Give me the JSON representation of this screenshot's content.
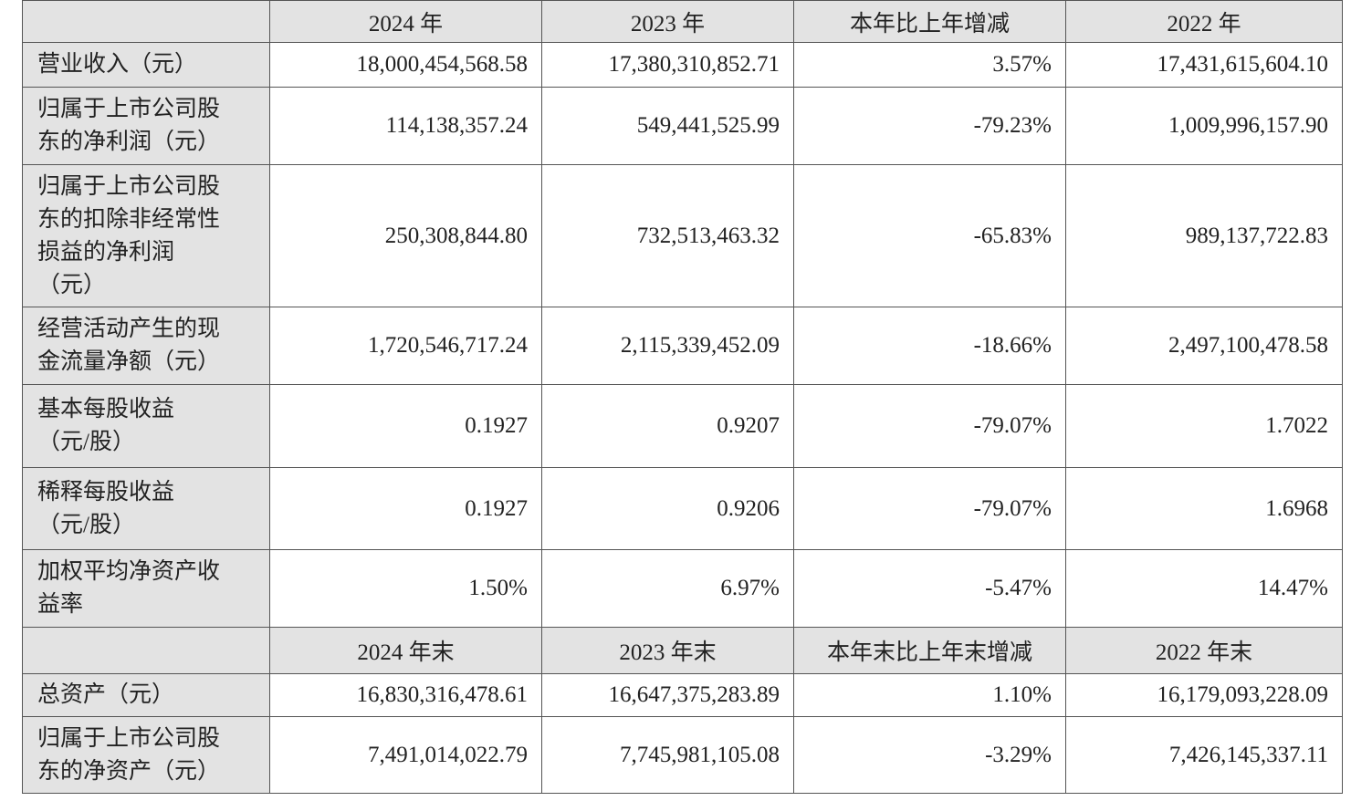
{
  "sections": [
    {
      "columns": [
        "2024 年",
        "2023 年",
        "本年比上年增减",
        "2022 年"
      ],
      "rows": [
        {
          "label": [
            "营业收入（元）"
          ],
          "values": [
            "18,000,454,568.58",
            "17,380,310,852.71",
            "3.57%",
            "17,431,615,604.10"
          ]
        },
        {
          "label": [
            "归属于上市公司股",
            "东的净利润（元）"
          ],
          "values": [
            "114,138,357.24",
            "549,441,525.99",
            "-79.23%",
            "1,009,996,157.90"
          ]
        },
        {
          "label": [
            "归属于上市公司股",
            "东的扣除非经常性",
            "损益的净利润",
            "（元）"
          ],
          "values": [
            "250,308,844.80",
            "732,513,463.32",
            "-65.83%",
            "989,137,722.83"
          ]
        },
        {
          "label": [
            "经营活动产生的现",
            "金流量净额（元）"
          ],
          "values": [
            "1,720,546,717.24",
            "2,115,339,452.09",
            "-18.66%",
            "2,497,100,478.58"
          ]
        },
        {
          "label": [
            "基本每股收益",
            "（元/股）"
          ],
          "values": [
            "0.1927",
            "0.9207",
            "-79.07%",
            "1.7022"
          ]
        },
        {
          "label": [
            "稀释每股收益",
            "（元/股）"
          ],
          "values": [
            "0.1927",
            "0.9206",
            "-79.07%",
            "1.6968"
          ]
        },
        {
          "label": [
            "加权平均净资产收",
            "益率"
          ],
          "values": [
            "1.50%",
            "6.97%",
            "-5.47%",
            "14.47%"
          ]
        }
      ]
    },
    {
      "columns": [
        "2024 年末",
        "2023 年末",
        "本年末比上年末增减",
        "2022 年末"
      ],
      "rows": [
        {
          "label": [
            "总资产（元）"
          ],
          "values": [
            "16,830,316,478.61",
            "16,647,375,283.89",
            "1.10%",
            "16,179,093,228.09"
          ]
        },
        {
          "label": [
            "归属于上市公司股",
            "东的净资产（元）"
          ],
          "values": [
            "7,491,014,022.79",
            "7,745,981,105.08",
            "-3.29%",
            "7,426,145,337.11"
          ]
        }
      ]
    }
  ]
}
